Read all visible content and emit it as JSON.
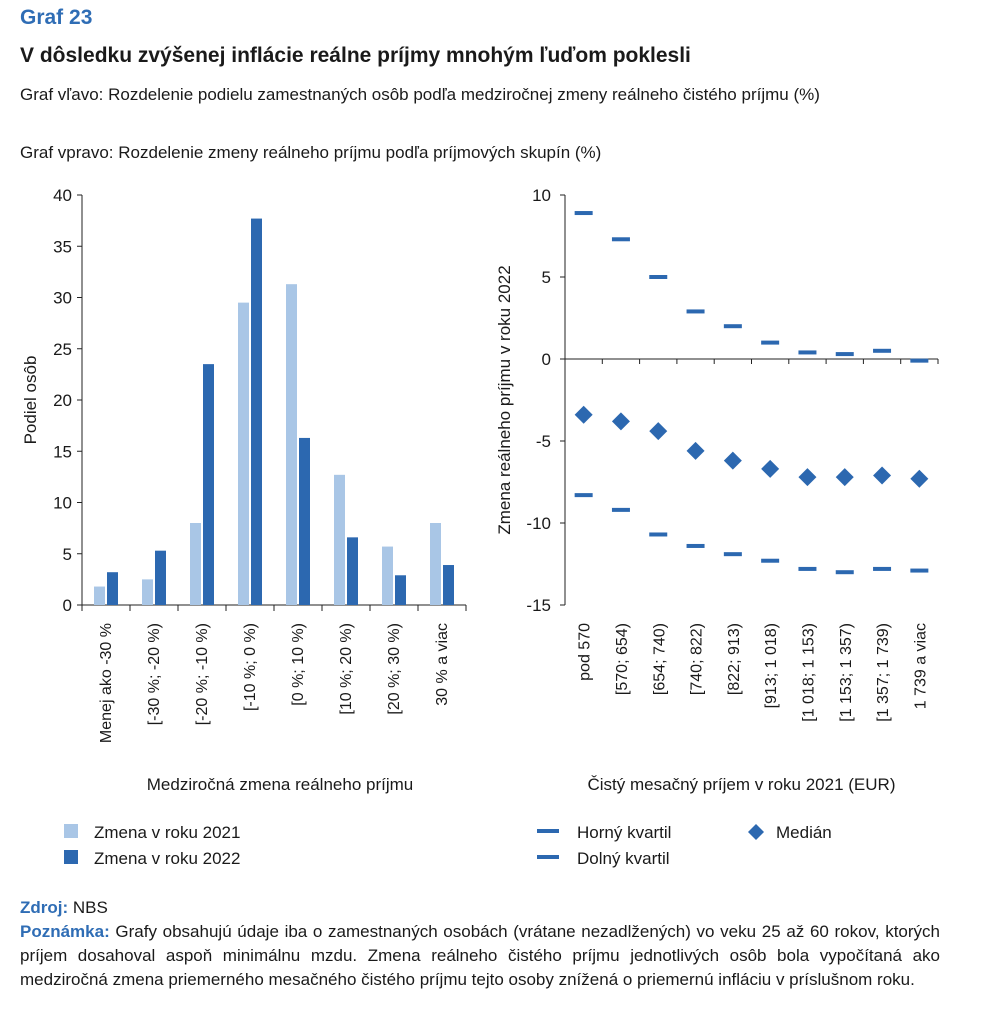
{
  "header": {
    "label": "Graf 23",
    "title": "V dôsledku zvýšenej inflácie reálne príjmy mnohým ľuďom poklesli",
    "subtitle_left": "Graf vľavo: Rozdelenie podielu zamestnaných osôb podľa medziročnej zmeny reálneho čistého príjmu (%)",
    "subtitle_right": "Graf vpravo: Rozdelenie zmeny reálneho príjmu podľa príjmových skupín (%)"
  },
  "colors": {
    "light": "#a9c6e6",
    "dark": "#2c68b0",
    "accent": "#2f6db5"
  },
  "chart_data": [
    {
      "type": "bar",
      "ylabel": "Podiel osôb",
      "xlabel": "Medziročná zmena reálneho príjmu",
      "ylim": [
        0,
        40
      ],
      "yticks": [
        0,
        5,
        10,
        15,
        20,
        25,
        30,
        35,
        40
      ],
      "categories": [
        "Menej ako -30 %",
        "[-30 %; -20 %)",
        "[-20 %; -10 %)",
        "[-10 %; 0 %)",
        "[0 %; 10 %)",
        "[10 %; 20 %)",
        "[20 %; 30 %)",
        "30 % a viac"
      ],
      "series": [
        {
          "name": "Zmena v roku 2021",
          "values": [
            1.8,
            2.5,
            8.0,
            29.5,
            31.3,
            12.7,
            5.7,
            8.0
          ]
        },
        {
          "name": "Zmena v roku 2022",
          "values": [
            3.2,
            5.3,
            23.5,
            37.7,
            16.3,
            6.6,
            2.9,
            3.9
          ]
        }
      ],
      "legend": "bottom-left"
    },
    {
      "type": "scatter",
      "ylabel": "Zmena reálneho príjmu v roku 2022",
      "xlabel": "Čistý mesačný príjem v roku 2021 (EUR)",
      "ylim": [
        -15,
        10
      ],
      "yticks": [
        -15,
        -10,
        -5,
        0,
        5,
        10
      ],
      "categories": [
        "pod 570",
        "[570; 654)",
        "[654; 740)",
        "[740; 822)",
        "[822; 913)",
        "[913; 1 018)",
        "[1 018; 1 153)",
        "[1 153; 1 357)",
        "[1 357; 1 739)",
        "1 739 a viac"
      ],
      "series": [
        {
          "name": "Horný kvartil",
          "marker": "dash",
          "values": [
            8.9,
            7.3,
            5.0,
            2.9,
            2.0,
            1.0,
            0.4,
            0.3,
            0.5,
            -0.1
          ]
        },
        {
          "name": "Medián",
          "marker": "diamond",
          "values": [
            -3.4,
            -3.8,
            -4.4,
            -5.6,
            -6.2,
            -6.7,
            -7.2,
            -7.2,
            -7.1,
            -7.3
          ]
        },
        {
          "name": "Dolný kvartil",
          "marker": "dash",
          "values": [
            -8.3,
            -9.2,
            -10.7,
            -11.4,
            -11.9,
            -12.3,
            -12.8,
            -13.0,
            -12.8,
            -12.9
          ]
        }
      ],
      "legend": "bottom"
    }
  ],
  "footer": {
    "source_label": "Zdroj:",
    "source_text": " NBS",
    "note_label": "Poznámka:",
    "note_text": " Grafy obsahujú údaje iba o zamestnaných osobách (vrátane nezadlžených) vo veku 25 až 60 rokov, ktorých príjem dosahoval aspoň minimálnu mzdu. Zmena reálneho čistého príjmu jednotlivých osôb bola vypočítaná ako medziročná zmena priemerného mesačného čistého príjmu tejto osoby znížená o priemernú infláciu v príslušnom roku."
  }
}
